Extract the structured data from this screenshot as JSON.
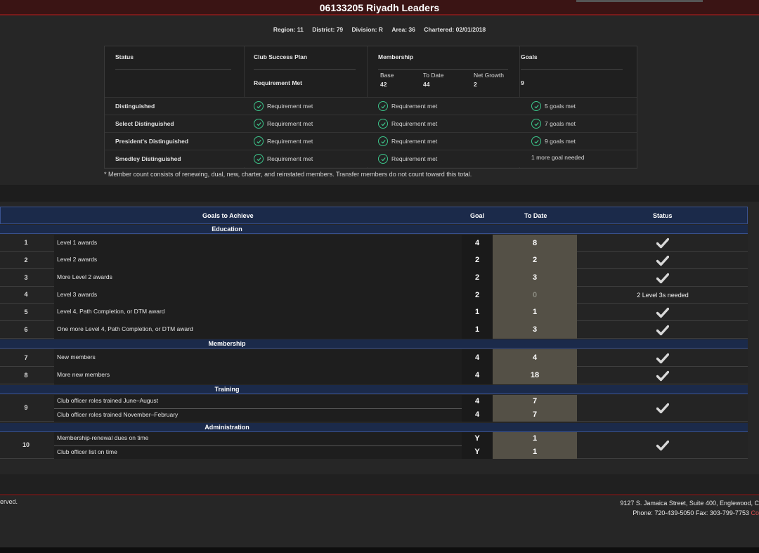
{
  "club": {
    "title": "06133205 Riyadh Leaders",
    "region": "Region: 11",
    "district": "District: 79",
    "division": "Division: R",
    "area": "Area: 36",
    "chartered": "Chartered: 02/01/2018"
  },
  "summary": {
    "headers": {
      "status": "Status",
      "plan": "Club Success Plan",
      "plan_sub": "Requirement Met",
      "membership": "Membership",
      "base_label": "Base",
      "base_value": "42",
      "todate_label": "To Date",
      "todate_value": "44",
      "growth_label": "Net Growth",
      "growth_value": "2",
      "goals": "Goals",
      "goals_value": "9"
    },
    "rows": [
      {
        "level": "Distinguished",
        "plan": "Requirement met",
        "membership": "Requirement met",
        "goals": "5 goals met",
        "goals_check": true
      },
      {
        "level": "Select Distinguished",
        "plan": "Requirement met",
        "membership": "Requirement met",
        "goals": "7 goals met",
        "goals_check": true
      },
      {
        "level": "President's Distinguished",
        "plan": "Requirement met",
        "membership": "Requirement met",
        "goals": "9 goals met",
        "goals_check": true
      },
      {
        "level": "Smedley Distinguished",
        "plan": "Requirement met",
        "membership": "Requirement met",
        "goals": "1 more goal needed",
        "goals_check": false
      }
    ],
    "footnote": "* Member count consists of renewing, dual, new, charter, and reinstated members. Transfer members do not count toward this total."
  },
  "goals": {
    "headers": {
      "goals": "Goals to Achieve",
      "goal": "Goal",
      "todate": "To Date",
      "status": "Status"
    },
    "sections": {
      "education": "Education",
      "membership": "Membership",
      "training": "Training",
      "administration": "Administration"
    },
    "rows": [
      {
        "num": "1",
        "desc": "Level 1 awards",
        "goal": "4",
        "todate": "8",
        "status": "check"
      },
      {
        "num": "2",
        "desc": "Level 2 awards",
        "goal": "2",
        "todate": "2",
        "status": "check"
      },
      {
        "num": "3",
        "desc": "More Level 2 awards",
        "goal": "2",
        "todate": "3",
        "status": "check"
      },
      {
        "num": "4",
        "desc": "Level 3 awards",
        "goal": "2",
        "todate": "0",
        "status_text": "2 Level 3s needed"
      },
      {
        "num": "5",
        "desc": "Level 4, Path Completion, or DTM award",
        "goal": "1",
        "todate": "1",
        "status": "check"
      },
      {
        "num": "6",
        "desc": "One more Level 4, Path Completion, or DTM award",
        "goal": "1",
        "todate": "3",
        "status": "check"
      },
      {
        "num": "7",
        "desc": "New members",
        "goal": "4",
        "todate": "4",
        "status": "check"
      },
      {
        "num": "8",
        "desc": "More new members",
        "goal": "4",
        "todate": "18",
        "status": "check"
      },
      {
        "num": "9",
        "desc": "Club officer roles trained June–August",
        "desc2": "Club officer roles trained November–February",
        "goal": "4",
        "goal2": "4",
        "todate": "7",
        "todate2": "7",
        "status": "check"
      },
      {
        "num": "10",
        "desc": "Membership-renewal dues on time",
        "desc2": "Club officer list on time",
        "goal": "Y",
        "goal2": "Y",
        "todate": "1",
        "todate2": "1",
        "status": "check"
      }
    ]
  },
  "footer": {
    "left": "erved.",
    "address": "9127 S. Jamaica Street, Suite 400, Englewood, C",
    "phone": "Phone: 720-439-5050 Fax: 303-799-7753",
    "link": "Co"
  },
  "colors": {
    "check_green": "#3cc48a",
    "header_blue": "#1b2a4a",
    "todate_bg": "#545046"
  }
}
